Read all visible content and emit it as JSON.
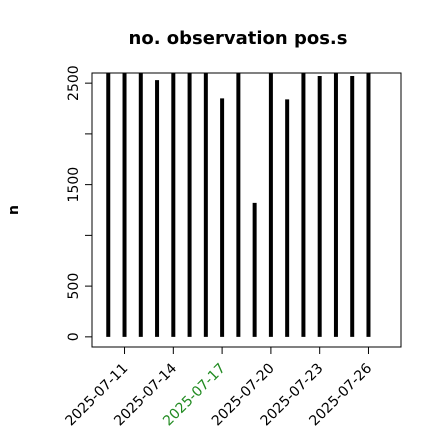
{
  "chart_data": {
    "type": "spike",
    "title": "no. observation pos.s",
    "ylabel": "n",
    "x": [
      "2025-07-10",
      "2025-07-11",
      "2025-07-12",
      "2025-07-13",
      "2025-07-14",
      "2025-07-15",
      "2025-07-16",
      "2025-07-17",
      "2025-07-18",
      "2025-07-19",
      "2025-07-20",
      "2025-07-21",
      "2025-07-22",
      "2025-07-23",
      "2025-07-24",
      "2025-07-25",
      "2025-07-26"
    ],
    "values": [
      2600,
      2600,
      2600,
      2530,
      2600,
      2600,
      2600,
      2350,
      2600,
      1320,
      2600,
      2340,
      2600,
      2570,
      2600,
      2570,
      2600
    ],
    "color": "#000000",
    "xlim": [
      "2025-07-09",
      "2025-07-28"
    ],
    "xticks": [
      "2025-07-11",
      "2025-07-14",
      "2025-07-17",
      "2025-07-20",
      "2025-07-23",
      "2025-07-26"
    ],
    "xtick_colors": [
      "#000000",
      "#000000",
      "#228b22",
      "#000000",
      "#000000",
      "#000000"
    ],
    "ylim": [
      -100,
      2600
    ],
    "yticks": [
      0,
      500,
      {
        "value": 1000,
        "label": null
      },
      1500,
      {
        "value": 2000,
        "label": null
      },
      2500
    ]
  }
}
